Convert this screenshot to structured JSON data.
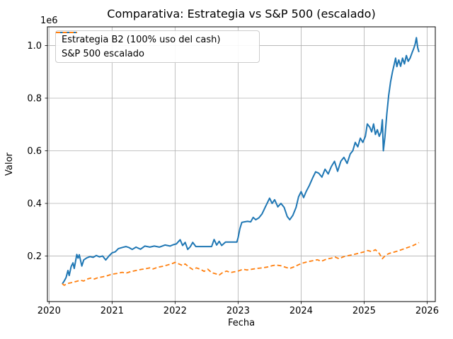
{
  "window": {
    "title": "Comparativa: Estrategia vs S&P 500 (escalado)"
  },
  "chart_data": {
    "type": "line",
    "title": "Comparativa: Estrategia vs S&P 500 (escalado)",
    "xlabel": "Fecha",
    "ylabel": "Valor",
    "y_offset_label": "1e6",
    "y_scale_note": "y values are in millions (axis shows 1e6 multiplier)",
    "grid": true,
    "legend_position": "upper left",
    "xlim": [
      2019.974,
      2026.13
    ],
    "ylim": [
      0.027,
      1.071
    ],
    "x_ticks": [
      2020,
      2021,
      2022,
      2023,
      2024,
      2025,
      2026
    ],
    "y_ticks": [
      0.2,
      0.4,
      0.6,
      0.8,
      1.0
    ],
    "colors": {
      "grid": "#b0b0b0",
      "spine": "#000000",
      "tick_text": "#000000"
    },
    "series": [
      {
        "name": "Estrategia B2 (100% uso del cash)",
        "color": "#1f77b4",
        "style": "solid",
        "line_width": 2,
        "points": [
          [
            2020.21,
            0.094
          ],
          [
            2020.24,
            0.105
          ],
          [
            2020.27,
            0.118
          ],
          [
            2020.3,
            0.145
          ],
          [
            2020.32,
            0.126
          ],
          [
            2020.35,
            0.16
          ],
          [
            2020.38,
            0.174
          ],
          [
            2020.4,
            0.153
          ],
          [
            2020.44,
            0.206
          ],
          [
            2020.46,
            0.192
          ],
          [
            2020.48,
            0.205
          ],
          [
            2020.52,
            0.162
          ],
          [
            2020.55,
            0.185
          ],
          [
            2020.6,
            0.193
          ],
          [
            2020.65,
            0.198
          ],
          [
            2020.7,
            0.195
          ],
          [
            2020.75,
            0.202
          ],
          [
            2020.8,
            0.197
          ],
          [
            2020.85,
            0.2
          ],
          [
            2020.9,
            0.185
          ],
          [
            2020.95,
            0.2
          ],
          [
            2021.0,
            0.212
          ],
          [
            2021.05,
            0.216
          ],
          [
            2021.1,
            0.228
          ],
          [
            2021.17,
            0.233
          ],
          [
            2021.22,
            0.236
          ],
          [
            2021.27,
            0.232
          ],
          [
            2021.32,
            0.225
          ],
          [
            2021.38,
            0.234
          ],
          [
            2021.45,
            0.226
          ],
          [
            2021.52,
            0.238
          ],
          [
            2021.6,
            0.234
          ],
          [
            2021.67,
            0.238
          ],
          [
            2021.75,
            0.234
          ],
          [
            2021.84,
            0.242
          ],
          [
            2021.92,
            0.238
          ],
          [
            2021.97,
            0.243
          ],
          [
            2022.02,
            0.246
          ],
          [
            2022.08,
            0.262
          ],
          [
            2022.12,
            0.24
          ],
          [
            2022.16,
            0.252
          ],
          [
            2022.2,
            0.225
          ],
          [
            2022.24,
            0.235
          ],
          [
            2022.28,
            0.252
          ],
          [
            2022.33,
            0.236
          ],
          [
            2022.45,
            0.236
          ],
          [
            2022.58,
            0.236
          ],
          [
            2022.62,
            0.263
          ],
          [
            2022.66,
            0.242
          ],
          [
            2022.7,
            0.256
          ],
          [
            2022.74,
            0.24
          ],
          [
            2022.8,
            0.253
          ],
          [
            2022.9,
            0.253
          ],
          [
            2022.98,
            0.253
          ],
          [
            2023.0,
            0.27
          ],
          [
            2023.03,
            0.305
          ],
          [
            2023.06,
            0.328
          ],
          [
            2023.1,
            0.33
          ],
          [
            2023.15,
            0.332
          ],
          [
            2023.2,
            0.33
          ],
          [
            2023.24,
            0.347
          ],
          [
            2023.28,
            0.338
          ],
          [
            2023.33,
            0.345
          ],
          [
            2023.38,
            0.36
          ],
          [
            2023.43,
            0.385
          ],
          [
            2023.47,
            0.405
          ],
          [
            2023.5,
            0.42
          ],
          [
            2023.54,
            0.4
          ],
          [
            2023.58,
            0.414
          ],
          [
            2023.63,
            0.387
          ],
          [
            2023.68,
            0.4
          ],
          [
            2023.73,
            0.385
          ],
          [
            2023.78,
            0.35
          ],
          [
            2023.82,
            0.338
          ],
          [
            2023.87,
            0.355
          ],
          [
            2023.92,
            0.385
          ],
          [
            2023.96,
            0.425
          ],
          [
            2024.0,
            0.445
          ],
          [
            2024.04,
            0.422
          ],
          [
            2024.08,
            0.445
          ],
          [
            2024.13,
            0.468
          ],
          [
            2024.18,
            0.495
          ],
          [
            2024.23,
            0.52
          ],
          [
            2024.28,
            0.515
          ],
          [
            2024.33,
            0.5
          ],
          [
            2024.38,
            0.53
          ],
          [
            2024.43,
            0.512
          ],
          [
            2024.48,
            0.54
          ],
          [
            2024.53,
            0.56
          ],
          [
            2024.58,
            0.522
          ],
          [
            2024.63,
            0.56
          ],
          [
            2024.68,
            0.575
          ],
          [
            2024.73,
            0.552
          ],
          [
            2024.78,
            0.588
          ],
          [
            2024.82,
            0.6
          ],
          [
            2024.86,
            0.632
          ],
          [
            2024.9,
            0.615
          ],
          [
            2024.94,
            0.648
          ],
          [
            2024.98,
            0.632
          ],
          [
            2025.02,
            0.655
          ],
          [
            2025.05,
            0.702
          ],
          [
            2025.09,
            0.69
          ],
          [
            2025.12,
            0.672
          ],
          [
            2025.15,
            0.702
          ],
          [
            2025.18,
            0.662
          ],
          [
            2025.21,
            0.68
          ],
          [
            2025.24,
            0.655
          ],
          [
            2025.27,
            0.672
          ],
          [
            2025.29,
            0.718
          ],
          [
            2025.305,
            0.6
          ],
          [
            2025.33,
            0.652
          ],
          [
            2025.36,
            0.74
          ],
          [
            2025.39,
            0.81
          ],
          [
            2025.42,
            0.862
          ],
          [
            2025.45,
            0.9
          ],
          [
            2025.48,
            0.93
          ],
          [
            2025.5,
            0.952
          ],
          [
            2025.52,
            0.92
          ],
          [
            2025.55,
            0.945
          ],
          [
            2025.58,
            0.921
          ],
          [
            2025.61,
            0.952
          ],
          [
            2025.64,
            0.93
          ],
          [
            2025.67,
            0.962
          ],
          [
            2025.7,
            0.94
          ],
          [
            2025.73,
            0.952
          ],
          [
            2025.76,
            0.972
          ],
          [
            2025.79,
            0.99
          ],
          [
            2025.81,
            1.005
          ],
          [
            2025.83,
            1.03
          ],
          [
            2025.85,
            0.992
          ],
          [
            2025.87,
            0.975
          ]
        ]
      },
      {
        "name": "S&P 500 escalado",
        "color": "#ff7f0e",
        "style": "dashed",
        "line_width": 1.8,
        "points": [
          [
            2020.21,
            0.095
          ],
          [
            2020.24,
            0.089
          ],
          [
            2020.28,
            0.094
          ],
          [
            2020.32,
            0.097
          ],
          [
            2020.38,
            0.1
          ],
          [
            2020.44,
            0.104
          ],
          [
            2020.5,
            0.108
          ],
          [
            2020.55,
            0.105
          ],
          [
            2020.6,
            0.112
          ],
          [
            2020.66,
            0.116
          ],
          [
            2020.72,
            0.113
          ],
          [
            2020.78,
            0.118
          ],
          [
            2020.85,
            0.121
          ],
          [
            2020.92,
            0.125
          ],
          [
            2021.0,
            0.131
          ],
          [
            2021.08,
            0.134
          ],
          [
            2021.16,
            0.138
          ],
          [
            2021.22,
            0.135
          ],
          [
            2021.3,
            0.141
          ],
          [
            2021.38,
            0.145
          ],
          [
            2021.46,
            0.149
          ],
          [
            2021.54,
            0.152
          ],
          [
            2021.6,
            0.155
          ],
          [
            2021.65,
            0.151
          ],
          [
            2021.72,
            0.157
          ],
          [
            2021.8,
            0.161
          ],
          [
            2021.88,
            0.166
          ],
          [
            2021.96,
            0.172
          ],
          [
            2022.0,
            0.176
          ],
          [
            2022.06,
            0.17
          ],
          [
            2022.12,
            0.164
          ],
          [
            2022.16,
            0.17
          ],
          [
            2022.22,
            0.158
          ],
          [
            2022.28,
            0.149
          ],
          [
            2022.34,
            0.155
          ],
          [
            2022.4,
            0.15
          ],
          [
            2022.46,
            0.142
          ],
          [
            2022.52,
            0.15
          ],
          [
            2022.58,
            0.137
          ],
          [
            2022.64,
            0.133
          ],
          [
            2022.7,
            0.128
          ],
          [
            2022.76,
            0.138
          ],
          [
            2022.82,
            0.143
          ],
          [
            2022.88,
            0.137
          ],
          [
            2022.94,
            0.14
          ],
          [
            2023.0,
            0.143
          ],
          [
            2023.08,
            0.15
          ],
          [
            2023.14,
            0.147
          ],
          [
            2023.22,
            0.15
          ],
          [
            2023.3,
            0.153
          ],
          [
            2023.38,
            0.155
          ],
          [
            2023.46,
            0.158
          ],
          [
            2023.54,
            0.163
          ],
          [
            2023.6,
            0.166
          ],
          [
            2023.68,
            0.163
          ],
          [
            2023.76,
            0.157
          ],
          [
            2023.82,
            0.153
          ],
          [
            2023.9,
            0.16
          ],
          [
            2023.96,
            0.167
          ],
          [
            2024.02,
            0.173
          ],
          [
            2024.1,
            0.178
          ],
          [
            2024.18,
            0.182
          ],
          [
            2024.26,
            0.186
          ],
          [
            2024.32,
            0.18
          ],
          [
            2024.4,
            0.188
          ],
          [
            2024.48,
            0.192
          ],
          [
            2024.54,
            0.196
          ],
          [
            2024.6,
            0.19
          ],
          [
            2024.68,
            0.198
          ],
          [
            2024.76,
            0.202
          ],
          [
            2024.84,
            0.206
          ],
          [
            2024.92,
            0.211
          ],
          [
            2025.0,
            0.216
          ],
          [
            2025.06,
            0.221
          ],
          [
            2025.12,
            0.217
          ],
          [
            2025.18,
            0.224
          ],
          [
            2025.24,
            0.21
          ],
          [
            2025.29,
            0.19
          ],
          [
            2025.34,
            0.203
          ],
          [
            2025.4,
            0.21
          ],
          [
            2025.46,
            0.214
          ],
          [
            2025.52,
            0.218
          ],
          [
            2025.58,
            0.223
          ],
          [
            2025.64,
            0.228
          ],
          [
            2025.7,
            0.233
          ],
          [
            2025.76,
            0.238
          ],
          [
            2025.82,
            0.245
          ],
          [
            2025.87,
            0.251
          ]
        ]
      }
    ]
  }
}
